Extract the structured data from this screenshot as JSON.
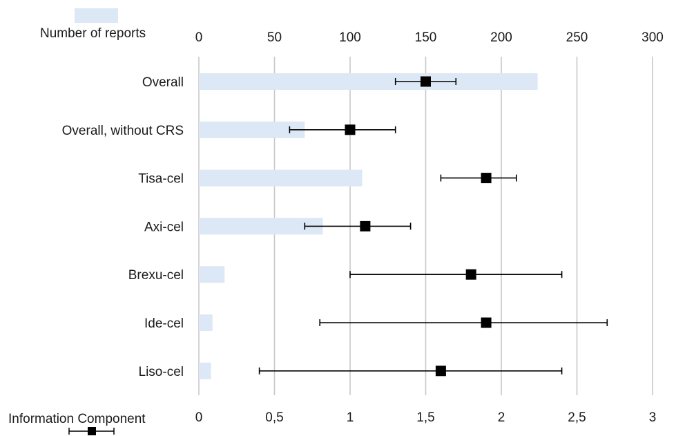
{
  "chart_data": {
    "type": "bar",
    "categories": [
      "Overall",
      "Overall, without CRS",
      "Tisa-cel",
      "Axi-cel",
      "Brexu-cel",
      "Ide-cel",
      "Liso-cel"
    ],
    "top_axis": {
      "label": "Number of reports",
      "ticks": [
        "0",
        "50",
        "100",
        "150",
        "200",
        "250",
        "300"
      ],
      "range": [
        0,
        300
      ]
    },
    "bottom_axis": {
      "label": "Information Component",
      "ticks": [
        "0",
        "0,5",
        "1",
        "1,5",
        "2",
        "2,5",
        "3"
      ],
      "range": [
        0,
        3
      ]
    },
    "series": [
      {
        "name": "Number of reports",
        "marker": "bar",
        "axis": "top",
        "color": "#dce8f5",
        "values": [
          224,
          70,
          108,
          82,
          17,
          9,
          8
        ]
      },
      {
        "name": "Information Component",
        "marker": "square-with-error-bars",
        "axis": "bottom",
        "color": "#000000",
        "values": [
          1.5,
          1.0,
          1.9,
          1.1,
          1.8,
          1.9,
          1.6
        ],
        "lower": [
          1.3,
          0.6,
          1.6,
          0.7,
          1.0,
          0.8,
          0.4
        ],
        "upper": [
          1.7,
          1.3,
          2.1,
          1.4,
          2.4,
          2.7,
          2.4
        ]
      }
    ],
    "grid": true,
    "legend": "top-left (bars) and bottom-left (markers)"
  }
}
